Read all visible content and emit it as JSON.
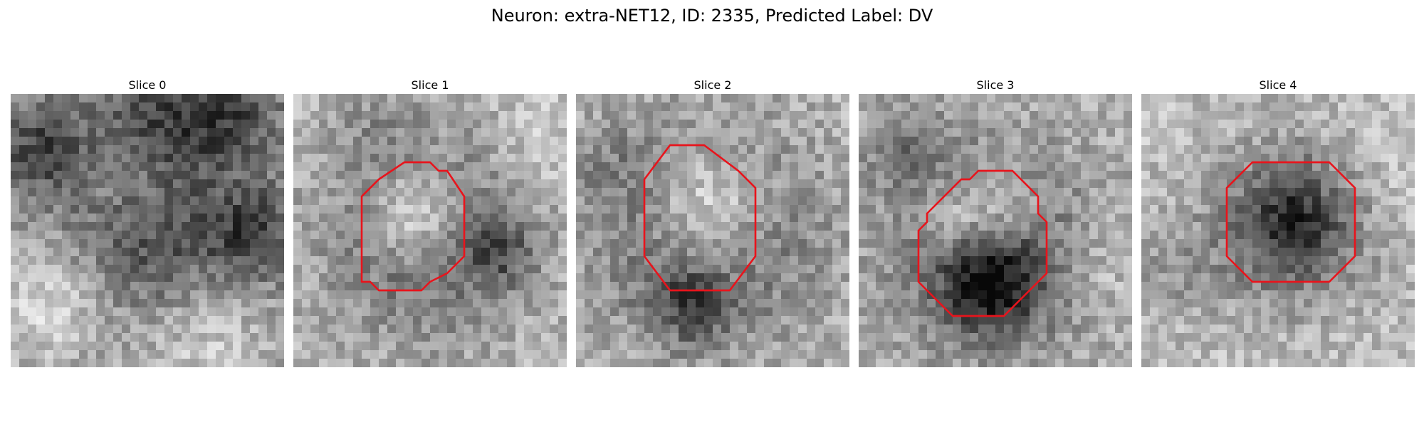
{
  "figure": {
    "title": "Neuron: extra-NET12, ID: 2335, Predicted Label: DV",
    "grid_size": 32,
    "roi_color": "#e8141c",
    "colormap": "gray",
    "panels": [
      {
        "title": "Slice 0",
        "roi": null
      },
      {
        "title": "Slice 1",
        "roi": [
          [
            10,
            10
          ],
          [
            13,
            8
          ],
          [
            16,
            8
          ],
          [
            17,
            9
          ],
          [
            18,
            9
          ],
          [
            20,
            12
          ],
          [
            20,
            19
          ],
          [
            18,
            21
          ],
          [
            16,
            22
          ],
          [
            15,
            23
          ],
          [
            10,
            23
          ],
          [
            9,
            22
          ],
          [
            8,
            22
          ],
          [
            8,
            21
          ],
          [
            8,
            19
          ],
          [
            8,
            17
          ],
          [
            8,
            12
          ]
        ]
      },
      {
        "title": "Slice 2",
        "roi": [
          [
            8,
            10
          ],
          [
            11,
            6
          ],
          [
            15,
            6
          ],
          [
            19,
            9
          ],
          [
            21,
            11
          ],
          [
            21,
            19
          ],
          [
            18,
            23
          ],
          [
            11,
            23
          ],
          [
            8,
            19
          ]
        ]
      },
      {
        "title": "Slice 3",
        "roi": [
          [
            12,
            10
          ],
          [
            13,
            10
          ],
          [
            14,
            9
          ],
          [
            18,
            9
          ],
          [
            19,
            10
          ],
          [
            21,
            12
          ],
          [
            21,
            14
          ],
          [
            22,
            15
          ],
          [
            22,
            21
          ],
          [
            20,
            23
          ],
          [
            17,
            26
          ],
          [
            11,
            26
          ],
          [
            7,
            22
          ],
          [
            7,
            16
          ],
          [
            8,
            15
          ],
          [
            8,
            14
          ]
        ]
      },
      {
        "title": "Slice 4",
        "roi": [
          [
            10,
            11
          ],
          [
            13,
            8
          ],
          [
            22,
            8
          ],
          [
            25,
            11
          ],
          [
            25,
            19
          ],
          [
            22,
            22
          ],
          [
            13,
            22
          ],
          [
            10,
            19
          ]
        ]
      }
    ]
  }
}
